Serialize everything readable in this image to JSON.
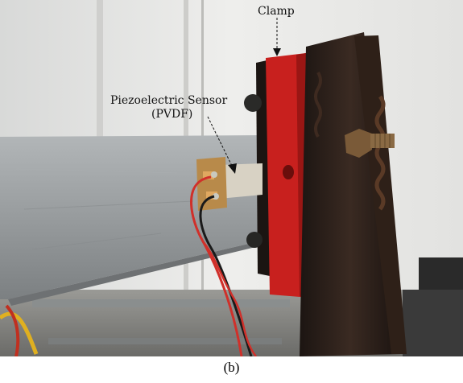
{
  "labels": {
    "clamp": "Clamp",
    "sensor_line1": "Piezoelectric Sensor",
    "sensor_line2": "(PVDF)"
  },
  "caption": "(b)",
  "colors": {
    "wall": "#e6e6e6",
    "beam": "#9a9ea0",
    "clamp_red": "#c8201e",
    "clamp_dark": "#2a1c16",
    "sensor_film": "#d8d2c4",
    "wire_red": "#d0302a",
    "wire_black": "#1a1a1a"
  }
}
